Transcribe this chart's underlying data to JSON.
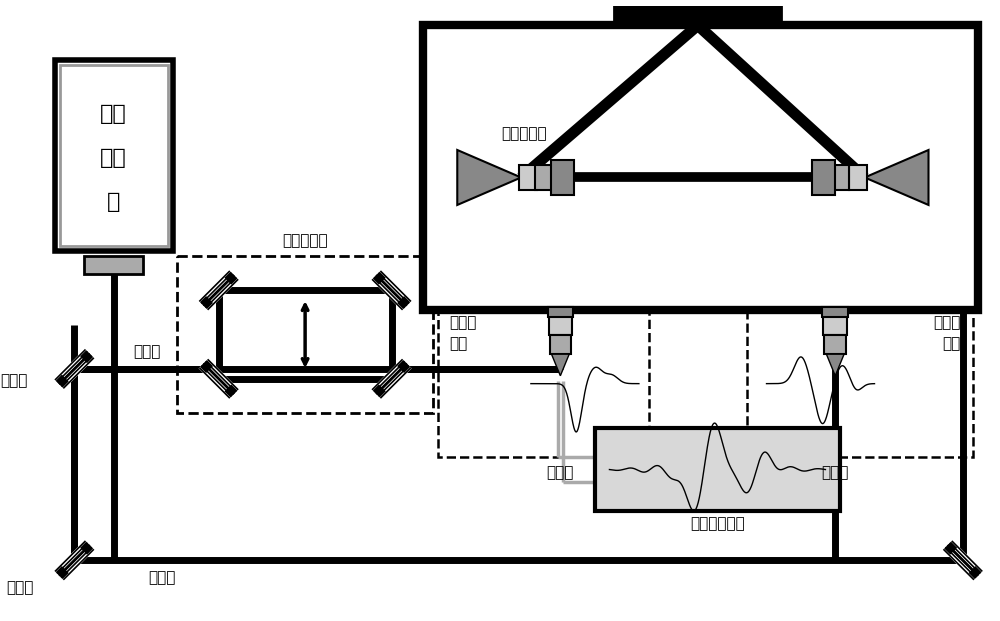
{
  "bg_color": "#ffffff",
  "black": "#000000",
  "gray1": "#888888",
  "gray2": "#aaaaaa",
  "gray3": "#cccccc",
  "gray_light": "#d8d8d8",
  "lw_thick": 5,
  "lw_med": 3,
  "lw_thin": 1.5,
  "fs_main": 11,
  "fs_small": 9,
  "laser_label": [
    "飞秒",
    "激光",
    "器"
  ],
  "delay_label": "光学延迟线",
  "parabolic_label": "离轴剖物镜",
  "antenna_label": "光电导\n天线",
  "probe_src_label": "探测源",
  "emit_src_label": "发射源",
  "bs_label": "分光镜",
  "mirror_label": "反射镜",
  "probe_light_label": "探测光",
  "pump_light_label": "泵浦光",
  "ctrl_label": "采集控制模块"
}
